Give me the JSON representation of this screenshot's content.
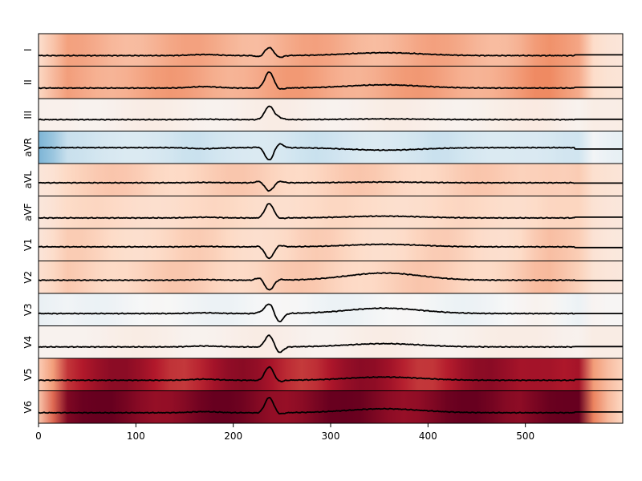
{
  "chart_data": {
    "type": "line",
    "title": "",
    "xlabel": "",
    "ylabel": "",
    "xlim": [
      0,
      600
    ],
    "x_ticks": [
      0,
      100,
      200,
      300,
      400,
      500
    ],
    "x_tick_labels": [
      "0",
      "100",
      "200",
      "300",
      "400",
      "500"
    ],
    "grid": false,
    "legend": "none",
    "x_description": "sample index",
    "colormap": [
      "#2166ac",
      "#67a9cf",
      "#d1e5f0",
      "#f7f7f7",
      "#fddbc7",
      "#ef8a62",
      "#b2182b",
      "#67001f"
    ],
    "leads": [
      {
        "label": "I",
        "baseline": -0.1,
        "p_wave": 0.06,
        "q_wave": -0.08,
        "r_peak": 0.45,
        "s_wave": -0.12,
        "t_wave": 0.16,
        "tint": 0.3,
        "tint_variation": 0.05
      },
      {
        "label": "II",
        "baseline": -0.1,
        "p_wave": 0.08,
        "q_wave": -0.02,
        "r_peak": 0.9,
        "s_wave": -0.1,
        "t_wave": 0.18,
        "tint": 0.33,
        "tint_variation": 0.05
      },
      {
        "label": "III",
        "baseline": -0.05,
        "p_wave": 0.02,
        "q_wave": 0.0,
        "r_peak": 0.75,
        "s_wave": 0.1,
        "t_wave": 0.04,
        "tint": -0.06,
        "tint_variation": 0.03
      },
      {
        "label": "aVR",
        "baseline": 0.2,
        "p_wave": -0.06,
        "q_wave": 0.05,
        "r_peak": -0.7,
        "s_wave": 0.25,
        "t_wave": -0.14,
        "tint": -0.4,
        "tint_variation": 0.05
      },
      {
        "label": "aVL",
        "baseline": 0.05,
        "p_wave": 0.02,
        "q_wave": 0.1,
        "r_peak": -0.45,
        "s_wave": 0.1,
        "t_wave": 0.04,
        "tint": 0.18,
        "tint_variation": 0.04
      },
      {
        "label": "aVF",
        "baseline": -0.1,
        "p_wave": 0.04,
        "q_wave": -0.02,
        "r_peak": 0.8,
        "s_wave": -0.05,
        "t_wave": 0.1,
        "tint": 0.13,
        "tint_variation": 0.03
      },
      {
        "label": "V1",
        "baseline": 0.1,
        "p_wave": 0.02,
        "q_wave": 0.05,
        "r_peak": -0.65,
        "s_wave": 0.1,
        "t_wave": 0.14,
        "tint": 0.15,
        "tint_variation": 0.05
      },
      {
        "label": "V2",
        "baseline": 0.05,
        "p_wave": 0.03,
        "q_wave": 0.15,
        "r_peak": -0.55,
        "s_wave": 0.05,
        "t_wave": 0.4,
        "tint": 0.18,
        "tint_variation": 0.04
      },
      {
        "label": "V3",
        "baseline": 0.0,
        "p_wave": 0.04,
        "q_wave": 0.05,
        "r_peak": 0.55,
        "s_wave": -0.5,
        "t_wave": 0.3,
        "tint": -0.18,
        "tint_variation": 0.05
      },
      {
        "label": "V4",
        "baseline": -0.05,
        "p_wave": 0.05,
        "q_wave": -0.03,
        "r_peak": 0.65,
        "s_wave": -0.35,
        "t_wave": 0.18,
        "tint": -0.06,
        "tint_variation": 0.03
      },
      {
        "label": "V5",
        "baseline": -0.1,
        "p_wave": 0.06,
        "q_wave": -0.03,
        "r_peak": 0.75,
        "s_wave": -0.1,
        "t_wave": 0.18,
        "tint": 0.75,
        "tint_variation": 0.12
      },
      {
        "label": "V6",
        "baseline": -0.1,
        "p_wave": 0.06,
        "q_wave": -0.03,
        "r_peak": 0.85,
        "s_wave": -0.1,
        "t_wave": 0.22,
        "tint": 0.92,
        "tint_variation": 0.1
      }
    ],
    "beat": {
      "p_center": 170,
      "qrs_center": 237,
      "t_center": 355,
      "signal_end": 550,
      "record_end": 600
    }
  }
}
